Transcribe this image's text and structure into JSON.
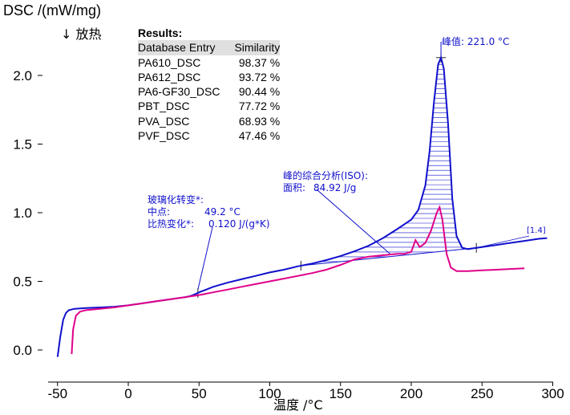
{
  "chart_data": {
    "type": "line",
    "ylabel": "DSC /(mW/mg)",
    "xlabel": "温度 /°C",
    "exo_label": "↓ 放热",
    "xlim": [
      -55,
      300
    ],
    "ylim": [
      -0.1,
      2.3
    ],
    "xticks": [
      "-50",
      "0",
      "50",
      "100",
      "150",
      "200",
      "250",
      "300"
    ],
    "yticks": [
      "0.0",
      "0.5",
      "1.0",
      "1.5",
      "2.0"
    ],
    "grid": false,
    "series": [
      {
        "color": "#1010cc",
        "points": [
          [
            -50,
            -0.05
          ],
          [
            -48,
            0.1
          ],
          [
            -46,
            0.22
          ],
          [
            -44,
            0.27
          ],
          [
            -42,
            0.29
          ],
          [
            -38,
            0.3
          ],
          [
            -30,
            0.305
          ],
          [
            -20,
            0.31
          ],
          [
            -10,
            0.315
          ],
          [
            0,
            0.325
          ],
          [
            10,
            0.34
          ],
          [
            20,
            0.355
          ],
          [
            30,
            0.37
          ],
          [
            40,
            0.385
          ],
          [
            45,
            0.395
          ],
          [
            50,
            0.42
          ],
          [
            55,
            0.44
          ],
          [
            60,
            0.46
          ],
          [
            70,
            0.49
          ],
          [
            80,
            0.515
          ],
          [
            90,
            0.54
          ],
          [
            100,
            0.565
          ],
          [
            110,
            0.585
          ],
          [
            120,
            0.61
          ],
          [
            130,
            0.63
          ],
          [
            140,
            0.655
          ],
          [
            150,
            0.685
          ],
          [
            160,
            0.72
          ],
          [
            170,
            0.76
          ],
          [
            180,
            0.815
          ],
          [
            190,
            0.88
          ],
          [
            200,
            0.95
          ],
          [
            205,
            1.02
          ],
          [
            210,
            1.2
          ],
          [
            213,
            1.45
          ],
          [
            216,
            1.8
          ],
          [
            219,
            2.08
          ],
          [
            221,
            2.13
          ],
          [
            223,
            2.05
          ],
          [
            226,
            1.65
          ],
          [
            229,
            1.1
          ],
          [
            232,
            0.83
          ],
          [
            236,
            0.745
          ],
          [
            240,
            0.735
          ],
          [
            250,
            0.75
          ],
          [
            260,
            0.765
          ],
          [
            270,
            0.78
          ],
          [
            280,
            0.795
          ],
          [
            290,
            0.81
          ],
          [
            296,
            0.815
          ]
        ]
      },
      {
        "color": "#e0008a",
        "points": [
          [
            -40,
            -0.03
          ],
          [
            -39,
            0.15
          ],
          [
            -37,
            0.25
          ],
          [
            -34,
            0.28
          ],
          [
            -30,
            0.29
          ],
          [
            -20,
            0.3
          ],
          [
            -10,
            0.31
          ],
          [
            0,
            0.325
          ],
          [
            10,
            0.34
          ],
          [
            20,
            0.355
          ],
          [
            30,
            0.37
          ],
          [
            40,
            0.385
          ],
          [
            50,
            0.4
          ],
          [
            60,
            0.42
          ],
          [
            70,
            0.44
          ],
          [
            80,
            0.46
          ],
          [
            90,
            0.48
          ],
          [
            100,
            0.5
          ],
          [
            110,
            0.52
          ],
          [
            120,
            0.54
          ],
          [
            130,
            0.56
          ],
          [
            140,
            0.585
          ],
          [
            150,
            0.62
          ],
          [
            160,
            0.66
          ],
          [
            170,
            0.68
          ],
          [
            180,
            0.69
          ],
          [
            190,
            0.7
          ],
          [
            195,
            0.7
          ],
          [
            200,
            0.715
          ],
          [
            203,
            0.8
          ],
          [
            206,
            0.75
          ],
          [
            210,
            0.78
          ],
          [
            214,
            0.87
          ],
          [
            218,
            1.0
          ],
          [
            220,
            1.04
          ],
          [
            222,
            0.95
          ],
          [
            225,
            0.7
          ],
          [
            228,
            0.6
          ],
          [
            232,
            0.575
          ],
          [
            240,
            0.575
          ],
          [
            250,
            0.58
          ],
          [
            260,
            0.585
          ],
          [
            270,
            0.59
          ],
          [
            280,
            0.595
          ]
        ]
      }
    ],
    "annotations": {
      "results_title": "Results:",
      "results_header": [
        "Database Entry",
        "Similarity"
      ],
      "results_rows": [
        [
          "PA610_DSC",
          "98.37 %"
        ],
        [
          "PA612_DSC",
          "93.72 %"
        ],
        [
          "PA6-GF30_DSC",
          "90.44 %"
        ],
        [
          "PBT_DSC",
          "77.72 %"
        ],
        [
          "PVA_DSC",
          "68.93 %"
        ],
        [
          "PVF_DSC",
          "47.46 %"
        ]
      ],
      "peak_label": "峰值: 221.0 °C",
      "peak_x": 221.0,
      "peak_y": 2.13,
      "glass_lines": [
        "玻璃化转变*:",
        "中点:",
        "49.2 °C",
        "比热变化*:",
        "0.120 J/(g*K)"
      ],
      "glass_x": 49.2,
      "integration_lines": [
        "峰的综合分析(ISO):",
        "面积:",
        "84.92 J/g"
      ],
      "integration_from_x": 122,
      "integration_to_x": 246,
      "range_label": "[1.4]"
    }
  }
}
